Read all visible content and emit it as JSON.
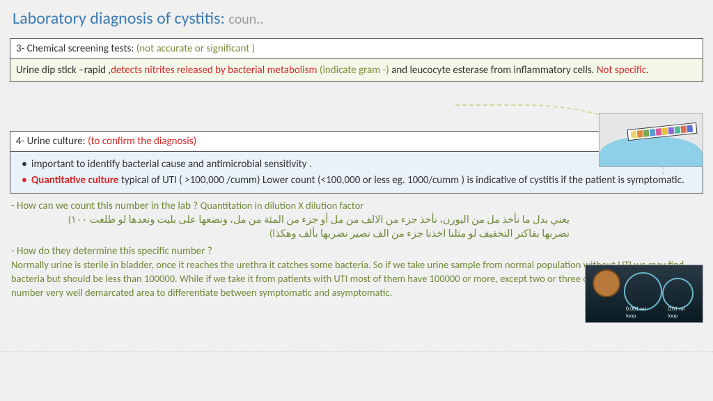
{
  "title": {
    "main": "Laboratory diagnosis of cystitis:",
    "cont": "coun.."
  },
  "section3": {
    "header_num": "3- Chemical screening tests: ",
    "header_note": "(not accurate or significant )",
    "body_a": "Urine dip stick –rapid ,",
    "body_b": "detects nitrites released by bacterial metabolism ",
    "body_c": "(indicate gram -) ",
    "body_d": "and leucocyte esterase from inflammatory cells. ",
    "body_e": "Not specific",
    "body_f": "."
  },
  "section4": {
    "header_num": "4- Urine culture: ",
    "header_note": "(to confirm the diagnosis)",
    "li1": "important to identify bacterial cause and antimicrobial sensitivity .",
    "li2_a": "Quantitative culture",
    "li2_b": " typical of UTI ( >100,000 /cumm) Lower count (<100,000 or less eg. 1000/cumm ) is indicative of cystitis if the patient is  symptomatic."
  },
  "notes": {
    "q1": "- How can we count this number in the lab ? ",
    "q1a": "Quantitation in dilution X dilution factor",
    "ar1": "يعني بدل ما نأخذ مل من اليورن، نأخذ جزء من الالف من مل أو جزء من المئة من مل، ونضعها على بليت ونعدها لو طلعت ١٠٠)",
    "ar2": "نضربها بفاكتر التخفيف لو مثلنا اخذنا جزء من الف نصير نضربها بألف وهكذا)",
    "q2": "- How do they determine this specific number ?",
    "p2": "Normally urine is sterile in bladder, once it reaches the urethra it catches some bacteria. So if we take urine sample from normal population without UTI we may find bacteria but should be less than 100000. While if we take it from patients with UTI most of them have 100000  or more, except two or three of them, So this significant number very well demarcated area to differentiate between symptomatic and asymptomatic."
  },
  "loop_labels": {
    "l1": "0.001 ml\nloop",
    "l2": "0.01 ml\nloop"
  },
  "strip_colors": [
    "#e8d46a",
    "#db8a3a",
    "#7aa859",
    "#5a9bd4",
    "#d45a9b",
    "#e8c13a",
    "#8a6adb",
    "#4ab89a",
    "#d6705a",
    "#5a70d6"
  ]
}
